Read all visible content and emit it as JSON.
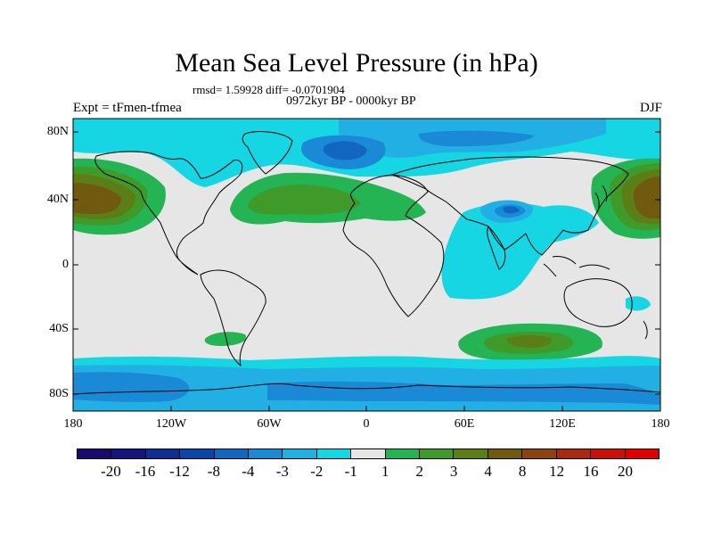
{
  "title": "Mean Sea Level Pressure (in hPa)",
  "stats_text": "rmsd= 1.59928 diff= -0.0701904",
  "period_text": "0972kyr BP - 0000kyr BP",
  "experiment_text": "Expt = tFmen-tfmea",
  "season_text": "DJF",
  "lat_labels": [
    "80N",
    "40N",
    "0",
    "40S",
    "80S"
  ],
  "lon_labels": [
    "180",
    "120W",
    "60W",
    "0",
    "60E",
    "120E",
    "180"
  ],
  "colorbar": {
    "labels": [
      "-20",
      "-16",
      "-12",
      "-8",
      "-4",
      "-3",
      "-2",
      "-1",
      "1",
      "2",
      "3",
      "4",
      "8",
      "12",
      "16",
      "20"
    ],
    "colors": [
      "#1b0a6e",
      "#16137f",
      "#0f2e93",
      "#0a46a8",
      "#1266c0",
      "#1a8ad6",
      "#22b0e4",
      "#16d6e4",
      "#e6e6e6",
      "#24b454",
      "#3f9a2a",
      "#5b7e16",
      "#705a10",
      "#8c4212",
      "#a82810",
      "#c81208",
      "#e00000"
    ]
  },
  "palette": {
    "background": "#e6e6e6",
    "neg1": "#16d6e4",
    "neg2": "#22b0e4",
    "neg3": "#1a8ad6",
    "neg4": "#1266c0",
    "pos1": "#24b454",
    "pos2": "#3f9a2a",
    "pos3": "#5b7e16",
    "pos4": "#705a10"
  }
}
